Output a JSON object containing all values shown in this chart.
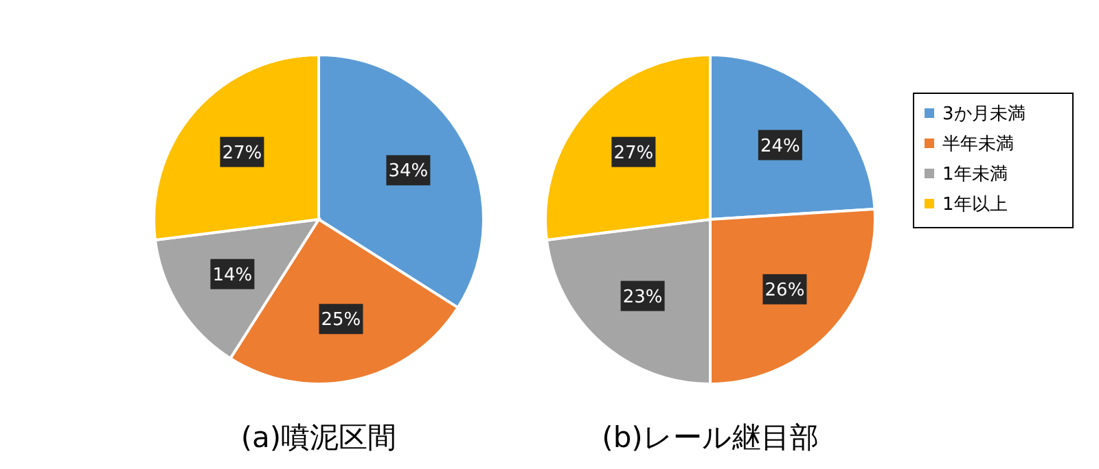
{
  "chart_data": [
    {
      "type": "pie",
      "title": "(a)噴泥区間",
      "categories": [
        null,
        null,
        null,
        null
      ],
      "values": [
        34,
        25,
        14,
        27
      ],
      "value_labels": [
        "34%",
        "25%",
        "14%",
        "27%"
      ],
      "colors": [
        "#5b9bd5",
        "#ed7d31",
        "#a5a5a5",
        "#ffc000"
      ]
    },
    {
      "type": "pie",
      "title": "(b)レール継目部",
      "categories": [
        "3か月未満",
        "半年未満",
        "1年未満",
        "1年以上"
      ],
      "values": [
        24,
        26,
        23,
        27
      ],
      "value_labels": [
        "24%",
        "26%",
        "23%",
        "27%"
      ],
      "colors": [
        "#5b9bd5",
        "#ed7d31",
        "#a5a5a5",
        "#ffc000"
      ],
      "legend": "right"
    }
  ]
}
